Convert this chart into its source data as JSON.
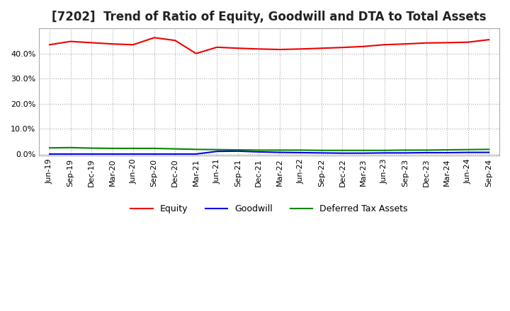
{
  "title": "[7202]  Trend of Ratio of Equity, Goodwill and DTA to Total Assets",
  "ylim": [
    -0.5,
    50.0
  ],
  "yticks": [
    0.0,
    10.0,
    20.0,
    30.0,
    40.0
  ],
  "x_labels": [
    "Jun-19",
    "Sep-19",
    "Dec-19",
    "Mar-20",
    "Jun-20",
    "Sep-20",
    "Dec-20",
    "Mar-21",
    "Jun-21",
    "Sep-21",
    "Dec-21",
    "Mar-22",
    "Jun-22",
    "Sep-22",
    "Dec-22",
    "Mar-23",
    "Jun-23",
    "Sep-23",
    "Dec-23",
    "Mar-24",
    "Jun-24",
    "Sep-24"
  ],
  "equity": [
    43.5,
    44.8,
    44.3,
    43.8,
    43.5,
    46.3,
    45.2,
    40.0,
    42.5,
    42.1,
    41.8,
    41.6,
    41.8,
    42.1,
    42.4,
    42.8,
    43.5,
    43.8,
    44.2,
    44.3,
    44.5,
    45.5
  ],
  "goodwill": [
    0.05,
    0.05,
    0.05,
    0.05,
    0.05,
    0.05,
    0.05,
    0.05,
    1.1,
    1.2,
    0.9,
    0.7,
    0.6,
    0.5,
    0.4,
    0.4,
    0.5,
    0.5,
    0.6,
    0.6,
    0.7,
    0.7
  ],
  "dta": [
    2.5,
    2.6,
    2.4,
    2.3,
    2.3,
    2.3,
    2.1,
    1.9,
    1.8,
    1.7,
    1.6,
    1.6,
    1.6,
    1.5,
    1.5,
    1.5,
    1.5,
    1.6,
    1.6,
    1.7,
    1.8,
    1.9
  ],
  "equity_color": "#EE0000",
  "goodwill_color": "#0000EE",
  "dta_color": "#008800",
  "background_color": "#FFFFFF",
  "plot_bg_color": "#FFFFFF",
  "grid_color": "#AAAAAA",
  "border_color": "#AAAAAA",
  "title_fontsize": 12,
  "tick_fontsize": 8,
  "legend_fontsize": 9
}
